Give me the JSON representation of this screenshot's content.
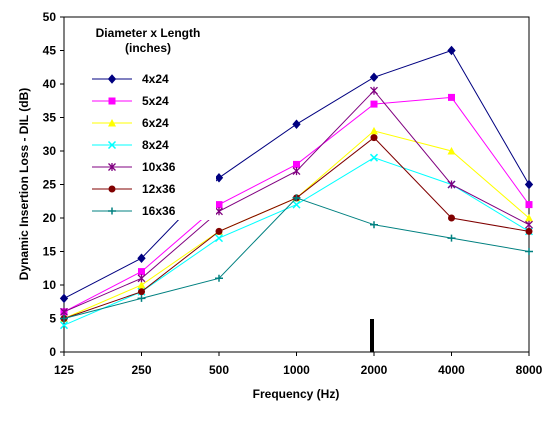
{
  "chart_data": {
    "type": "line",
    "xlabel": "Frequency (Hz)",
    "ylabel": "Dynamic Insertion Loss - DIL (dB)",
    "categories": [
      "125",
      "250",
      "500",
      "1000",
      "2000",
      "4000",
      "8000"
    ],
    "ylim": [
      0,
      50
    ],
    "yticks": [
      "0",
      "5",
      "10",
      "15",
      "20",
      "25",
      "30",
      "35",
      "40",
      "45",
      "50"
    ],
    "grid": false,
    "legend": {
      "title_lines": [
        "Diameter x Length",
        "(inches)"
      ],
      "placement": "top-left"
    },
    "series": [
      {
        "name": "4x24",
        "color": "#000080",
        "marker": "diamond",
        "values": [
          8,
          14,
          26,
          34,
          41,
          45,
          25
        ]
      },
      {
        "name": "5x24",
        "color": "#ff00ff",
        "marker": "square",
        "values": [
          6,
          12,
          22,
          28,
          37,
          38,
          22
        ]
      },
      {
        "name": "6x24",
        "color": "#ffff00",
        "marker": "triangle",
        "values": [
          5,
          10,
          18,
          23,
          33,
          30,
          20
        ]
      },
      {
        "name": "8x24",
        "color": "#00ffff",
        "marker": "x",
        "values": [
          4,
          9,
          17,
          22,
          29,
          25,
          18
        ]
      },
      {
        "name": "10x36",
        "color": "#800080",
        "marker": "star",
        "values": [
          6,
          11,
          21,
          27,
          39,
          25,
          19
        ]
      },
      {
        "name": "12x36",
        "color": "#800000",
        "marker": "circle",
        "values": [
          5,
          9,
          18,
          23,
          32,
          20,
          18
        ]
      },
      {
        "name": "16x36",
        "color": "#008080",
        "marker": "plus",
        "values": [
          5,
          8,
          11,
          23,
          19,
          17,
          15
        ]
      }
    ]
  }
}
